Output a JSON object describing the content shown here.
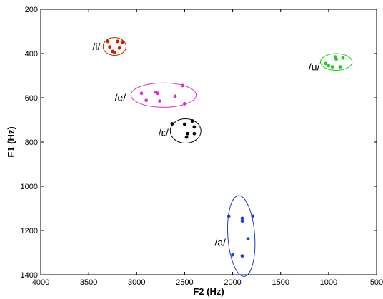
{
  "chart_data": {
    "type": "scatter",
    "title": "",
    "xlabel": "F2 (Hz)",
    "ylabel": "F1 (Hz)",
    "xlim": [
      4000,
      500
    ],
    "ylim": [
      200,
      1400
    ],
    "x_reversed": true,
    "y_reversed": true,
    "xticks": [
      4000,
      3500,
      3000,
      2500,
      2000,
      1500,
      1000,
      500
    ],
    "yticks": [
      200,
      400,
      600,
      800,
      1000,
      1200,
      1400
    ],
    "grid": false,
    "legend": "none",
    "groups": [
      {
        "label": "/i/",
        "color": "#cc2200",
        "ellipse": {
          "cx": 3230,
          "cy": 368,
          "rx": 120,
          "ry": 40
        },
        "label_pos": {
          "x": 3420,
          "y": 368
        },
        "points": [
          {
            "x": 3300,
            "y": 345
          },
          {
            "x": 3200,
            "y": 345
          },
          {
            "x": 3150,
            "y": 348
          },
          {
            "x": 3280,
            "y": 370
          },
          {
            "x": 3180,
            "y": 375
          },
          {
            "x": 3250,
            "y": 390
          },
          {
            "x": 3230,
            "y": 395
          }
        ]
      },
      {
        "label": "/u/",
        "color": "#22cc22",
        "ellipse": {
          "cx": 920,
          "cy": 438,
          "rx": 165,
          "ry": 38
        },
        "label_pos": {
          "x": 1150,
          "y": 460
        },
        "points": [
          {
            "x": 930,
            "y": 415
          },
          {
            "x": 850,
            "y": 420
          },
          {
            "x": 920,
            "y": 425
          },
          {
            "x": 1030,
            "y": 445
          },
          {
            "x": 1000,
            "y": 455
          },
          {
            "x": 960,
            "y": 460
          },
          {
            "x": 880,
            "y": 460
          }
        ]
      },
      {
        "label": "/e/",
        "color": "#dd33cc",
        "ellipse": {
          "cx": 2720,
          "cy": 588,
          "rx": 340,
          "ry": 55
        },
        "label_pos": {
          "x": 3170,
          "y": 598
        },
        "points": [
          {
            "x": 2520,
            "y": 545
          },
          {
            "x": 2800,
            "y": 575
          },
          {
            "x": 2780,
            "y": 580
          },
          {
            "x": 2950,
            "y": 580
          },
          {
            "x": 2600,
            "y": 593
          },
          {
            "x": 2900,
            "y": 612
          },
          {
            "x": 2760,
            "y": 615
          },
          {
            "x": 2500,
            "y": 627
          }
        ]
      },
      {
        "label": "/ε/",
        "color": "#000000",
        "ellipse": {
          "cx": 2490,
          "cy": 750,
          "rx": 160,
          "ry": 55
        },
        "label_pos": {
          "x": 2720,
          "y": 757
        },
        "points": [
          {
            "x": 2630,
            "y": 718
          },
          {
            "x": 2500,
            "y": 720
          },
          {
            "x": 2420,
            "y": 705
          },
          {
            "x": 2400,
            "y": 732
          },
          {
            "x": 2470,
            "y": 762
          },
          {
            "x": 2400,
            "y": 762
          },
          {
            "x": 2480,
            "y": 778
          }
        ]
      },
      {
        "label": "/a/",
        "color": "#1f3fcc",
        "ellipse": {
          "cx": 1910,
          "cy": 1225,
          "rx": 140,
          "ry": 183,
          "rotate": -4
        },
        "label_pos": {
          "x": 2130,
          "y": 1253
        },
        "points": [
          {
            "x": 2040,
            "y": 1135
          },
          {
            "x": 1790,
            "y": 1135
          },
          {
            "x": 1900,
            "y": 1145
          },
          {
            "x": 1900,
            "y": 1157
          },
          {
            "x": 1840,
            "y": 1238
          },
          {
            "x": 2000,
            "y": 1310
          },
          {
            "x": 1900,
            "y": 1315
          }
        ]
      }
    ]
  }
}
